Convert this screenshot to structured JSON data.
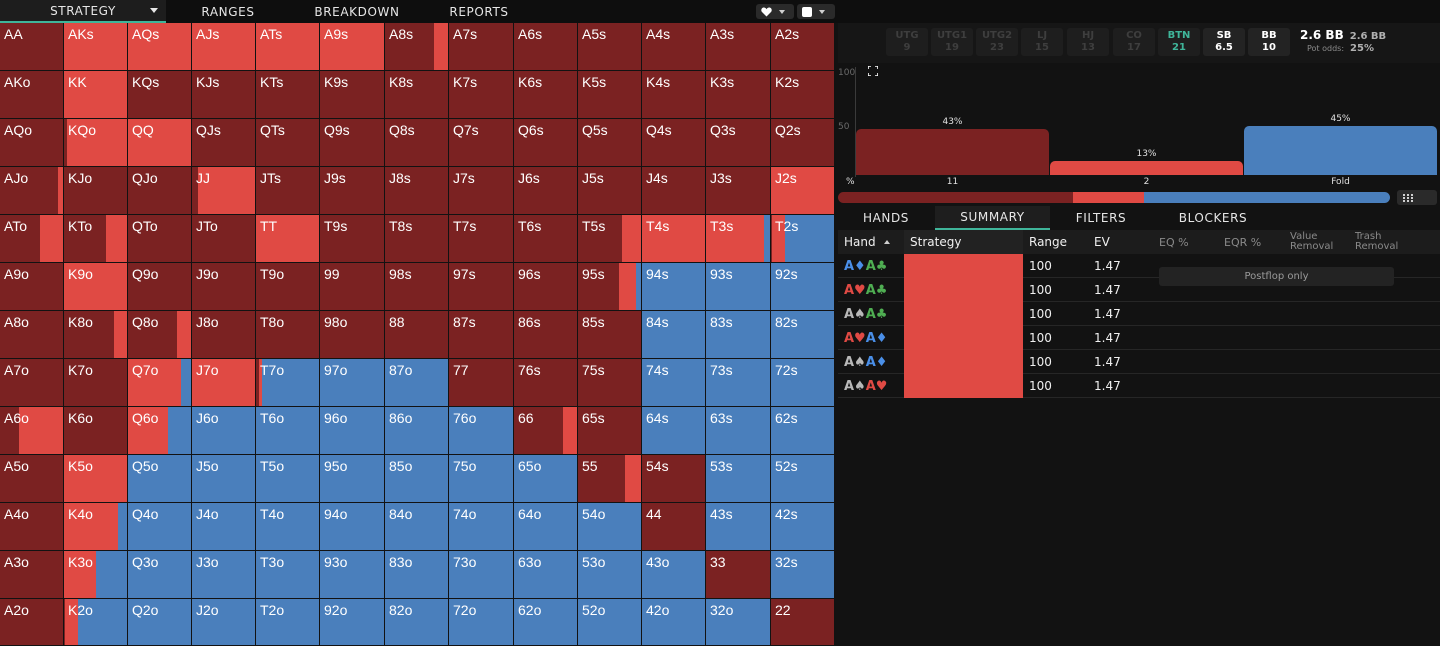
{
  "colors": {
    "raise_big": "#7b2222",
    "raise_small": "#e04a44",
    "fold": "#4a7fbc",
    "accent": "#3fb59a"
  },
  "nav": {
    "tabs": [
      {
        "label": "STRATEGY",
        "active": true
      },
      {
        "label": "RANGES",
        "active": false
      },
      {
        "label": "BREAKDOWN",
        "active": false
      },
      {
        "label": "REPORTS",
        "active": false
      }
    ],
    "selectors": [
      {
        "icon": "heart-icon"
      },
      {
        "icon": "square-icon"
      }
    ]
  },
  "grid": {
    "hands": [
      [
        "AA",
        "AKs",
        "AQs",
        "AJs",
        "ATs",
        "A9s",
        "A8s",
        "A7s",
        "A6s",
        "A5s",
        "A4s",
        "A3s",
        "A2s"
      ],
      [
        "AKo",
        "KK",
        "KQs",
        "KJs",
        "KTs",
        "K9s",
        "K8s",
        "K7s",
        "K6s",
        "K5s",
        "K4s",
        "K3s",
        "K2s"
      ],
      [
        "AQo",
        "KQo",
        "QQ",
        "QJs",
        "QTs",
        "Q9s",
        "Q8s",
        "Q7s",
        "Q6s",
        "Q5s",
        "Q4s",
        "Q3s",
        "Q2s"
      ],
      [
        "AJo",
        "KJo",
        "QJo",
        "JJ",
        "JTs",
        "J9s",
        "J8s",
        "J7s",
        "J6s",
        "J5s",
        "J4s",
        "J3s",
        "J2s"
      ],
      [
        "ATo",
        "KTo",
        "QTo",
        "JTo",
        "TT",
        "T9s",
        "T8s",
        "T7s",
        "T6s",
        "T5s",
        "T4s",
        "T3s",
        "T2s"
      ],
      [
        "A9o",
        "K9o",
        "Q9o",
        "J9o",
        "T9o",
        "99",
        "98s",
        "97s",
        "96s",
        "95s",
        "94s",
        "93s",
        "92s"
      ],
      [
        "A8o",
        "K8o",
        "Q8o",
        "J8o",
        "T8o",
        "98o",
        "88",
        "87s",
        "86s",
        "85s",
        "84s",
        "83s",
        "82s"
      ],
      [
        "A7o",
        "K7o",
        "Q7o",
        "J7o",
        "T7o",
        "97o",
        "87o",
        "77",
        "76s",
        "75s",
        "74s",
        "73s",
        "72s"
      ],
      [
        "A6o",
        "K6o",
        "Q6o",
        "J6o",
        "T6o",
        "96o",
        "86o",
        "76o",
        "66",
        "65s",
        "64s",
        "63s",
        "62s"
      ],
      [
        "A5o",
        "K5o",
        "Q5o",
        "J5o",
        "T5o",
        "95o",
        "85o",
        "75o",
        "65o",
        "55",
        "54s",
        "53s",
        "52s"
      ],
      [
        "A4o",
        "K4o",
        "Q4o",
        "J4o",
        "T4o",
        "94o",
        "84o",
        "74o",
        "64o",
        "54o",
        "44",
        "43s",
        "42s"
      ],
      [
        "A3o",
        "K3o",
        "Q3o",
        "J3o",
        "T3o",
        "93o",
        "83o",
        "73o",
        "63o",
        "53o",
        "43o",
        "33",
        "32s"
      ],
      [
        "A2o",
        "K2o",
        "Q2o",
        "J2o",
        "T2o",
        "92o",
        "82o",
        "72o",
        "62o",
        "52o",
        "42o",
        "32o",
        "22"
      ]
    ],
    "freqs": [
      [
        [
          1,
          0,
          0
        ],
        [
          0,
          1,
          0
        ],
        [
          0,
          1,
          0
        ],
        [
          0,
          1,
          0
        ],
        [
          0,
          1,
          0
        ],
        [
          0,
          1,
          0
        ],
        [
          0.78,
          0.22,
          0
        ],
        [
          1,
          0,
          0
        ],
        [
          1,
          0,
          0
        ],
        [
          1,
          0,
          0
        ],
        [
          1,
          0,
          0
        ],
        [
          1,
          0,
          0
        ],
        [
          1,
          0,
          0
        ]
      ],
      [
        [
          1,
          0,
          0
        ],
        [
          0,
          1,
          0
        ],
        [
          1,
          0,
          0
        ],
        [
          1,
          0,
          0
        ],
        [
          1,
          0,
          0
        ],
        [
          1,
          0,
          0
        ],
        [
          1,
          0,
          0
        ],
        [
          1,
          0,
          0
        ],
        [
          1,
          0,
          0
        ],
        [
          1,
          0,
          0
        ],
        [
          1,
          0,
          0
        ],
        [
          1,
          0,
          0
        ],
        [
          1,
          0,
          0
        ]
      ],
      [
        [
          1,
          0,
          0
        ],
        [
          0.04,
          0.96,
          0
        ],
        [
          0,
          1,
          0
        ],
        [
          1,
          0,
          0
        ],
        [
          1,
          0,
          0
        ],
        [
          1,
          0,
          0
        ],
        [
          1,
          0,
          0
        ],
        [
          1,
          0,
          0
        ],
        [
          1,
          0,
          0
        ],
        [
          1,
          0,
          0
        ],
        [
          1,
          0,
          0
        ],
        [
          1,
          0,
          0
        ],
        [
          1,
          0,
          0
        ]
      ],
      [
        [
          0.92,
          0.08,
          0
        ],
        [
          1,
          0,
          0
        ],
        [
          1,
          0,
          0
        ],
        [
          0.1,
          0.9,
          0
        ],
        [
          1,
          0,
          0
        ],
        [
          1,
          0,
          0
        ],
        [
          1,
          0,
          0
        ],
        [
          1,
          0,
          0
        ],
        [
          1,
          0,
          0
        ],
        [
          1,
          0,
          0
        ],
        [
          1,
          0,
          0
        ],
        [
          1,
          0,
          0
        ],
        [
          0,
          1,
          0
        ]
      ],
      [
        [
          0.64,
          0.36,
          0
        ],
        [
          0.66,
          0.34,
          0
        ],
        [
          1,
          0,
          0
        ],
        [
          1,
          0,
          0
        ],
        [
          0,
          1,
          0
        ],
        [
          1,
          0,
          0
        ],
        [
          1,
          0,
          0
        ],
        [
          1,
          0,
          0
        ],
        [
          1,
          0,
          0
        ],
        [
          0.7,
          0.3,
          0
        ],
        [
          0,
          1,
          0
        ],
        [
          0,
          0.9,
          0.1
        ],
        [
          0.02,
          0.2,
          0.78
        ]
      ],
      [
        [
          1,
          0,
          0
        ],
        [
          0,
          1,
          0
        ],
        [
          1,
          0,
          0
        ],
        [
          1,
          0,
          0
        ],
        [
          1,
          0,
          0
        ],
        [
          1,
          0,
          0
        ],
        [
          1,
          0,
          0
        ],
        [
          1,
          0,
          0
        ],
        [
          1,
          0,
          0
        ],
        [
          0.65,
          0.27,
          0.08
        ],
        [
          0,
          0,
          1
        ],
        [
          0,
          0,
          1
        ],
        [
          0,
          0,
          1
        ]
      ],
      [
        [
          1,
          0,
          0
        ],
        [
          0.8,
          0.2,
          0
        ],
        [
          0.78,
          0.22,
          0
        ],
        [
          1,
          0,
          0
        ],
        [
          1,
          0,
          0
        ],
        [
          1,
          0,
          0
        ],
        [
          1,
          0,
          0
        ],
        [
          1,
          0,
          0
        ],
        [
          1,
          0,
          0
        ],
        [
          1,
          0,
          0
        ],
        [
          0,
          0,
          1
        ],
        [
          0,
          0,
          1
        ],
        [
          0,
          0,
          1
        ]
      ],
      [
        [
          1,
          0,
          0
        ],
        [
          1,
          0,
          0
        ],
        [
          0,
          0.84,
          0.16
        ],
        [
          0,
          1,
          0
        ],
        [
          0.04,
          0.06,
          0.9
        ],
        [
          0,
          0,
          1
        ],
        [
          0,
          0,
          1
        ],
        [
          1,
          0,
          0
        ],
        [
          1,
          0,
          0
        ],
        [
          1,
          0,
          0
        ],
        [
          0,
          0,
          1
        ],
        [
          0,
          0,
          1
        ],
        [
          0,
          0,
          1
        ]
      ],
      [
        [
          0.3,
          0.7,
          0
        ],
        [
          1,
          0,
          0
        ],
        [
          0,
          0.64,
          0.36
        ],
        [
          0,
          0,
          1
        ],
        [
          0,
          0,
          1
        ],
        [
          0,
          0,
          1
        ],
        [
          0,
          0,
          1
        ],
        [
          0,
          0,
          1
        ],
        [
          0.78,
          0.22,
          0
        ],
        [
          1,
          0,
          0
        ],
        [
          0,
          0,
          1
        ],
        [
          0,
          0,
          1
        ],
        [
          0,
          0,
          1
        ]
      ],
      [
        [
          1,
          0,
          0
        ],
        [
          0,
          1,
          0
        ],
        [
          0,
          0,
          1
        ],
        [
          0,
          0,
          1
        ],
        [
          0,
          0,
          1
        ],
        [
          0,
          0,
          1
        ],
        [
          0,
          0,
          1
        ],
        [
          0,
          0,
          1
        ],
        [
          0,
          0,
          1
        ],
        [
          0.75,
          0.25,
          0
        ],
        [
          1,
          0,
          0
        ],
        [
          0,
          0,
          1
        ],
        [
          0,
          0,
          1
        ]
      ],
      [
        [
          1,
          0,
          0
        ],
        [
          0,
          0.86,
          0.14
        ],
        [
          0,
          0,
          1
        ],
        [
          0,
          0,
          1
        ],
        [
          0,
          0,
          1
        ],
        [
          0,
          0,
          1
        ],
        [
          0,
          0,
          1
        ],
        [
          0,
          0,
          1
        ],
        [
          0,
          0,
          1
        ],
        [
          0,
          0,
          1
        ],
        [
          1,
          0,
          0
        ],
        [
          0,
          0,
          1
        ],
        [
          0,
          0,
          1
        ]
      ],
      [
        [
          1,
          0,
          0
        ],
        [
          0,
          0.5,
          0.5
        ],
        [
          0,
          0,
          1
        ],
        [
          0,
          0,
          1
        ],
        [
          0,
          0,
          1
        ],
        [
          0,
          0,
          1
        ],
        [
          0,
          0,
          1
        ],
        [
          0,
          0,
          1
        ],
        [
          0,
          0,
          1
        ],
        [
          0,
          0,
          1
        ],
        [
          0,
          0,
          1
        ],
        [
          1,
          0,
          0
        ],
        [
          0,
          0,
          1
        ]
      ],
      [
        [
          1,
          0,
          0
        ],
        [
          0.02,
          0.2,
          0.78
        ],
        [
          0,
          0,
          1
        ],
        [
          0,
          0,
          1
        ],
        [
          0,
          0,
          1
        ],
        [
          0,
          0,
          1
        ],
        [
          0,
          0,
          1
        ],
        [
          0,
          0,
          1
        ],
        [
          0,
          0,
          1
        ],
        [
          0,
          0,
          1
        ],
        [
          0,
          0,
          1
        ],
        [
          0,
          0,
          1
        ],
        [
          1,
          0,
          0
        ]
      ]
    ]
  },
  "positions": [
    {
      "name": "UTG",
      "stack": "9",
      "state": "dim"
    },
    {
      "name": "UTG1",
      "stack": "19",
      "state": "dim"
    },
    {
      "name": "UTG2",
      "stack": "23",
      "state": "dim"
    },
    {
      "name": "LJ",
      "stack": "15",
      "state": "dim"
    },
    {
      "name": "HJ",
      "stack": "13",
      "state": "dim"
    },
    {
      "name": "CO",
      "stack": "17",
      "state": "dim"
    },
    {
      "name": "BTN",
      "stack": "21",
      "state": "btn"
    },
    {
      "name": "SB",
      "stack": "6.5",
      "state": "live"
    },
    {
      "name": "BB",
      "stack": "10",
      "state": "live"
    }
  ],
  "pot": {
    "main": "2.6 BB",
    "secondary": "2.6 BB",
    "odds_label": "Pot odds:",
    "odds_value": "25%"
  },
  "chart_data": {
    "type": "bar",
    "categories": [
      "11",
      "2",
      "Fold"
    ],
    "values": [
      43,
      13,
      45
    ],
    "value_labels": [
      "43%",
      "13%",
      "45%"
    ],
    "ylim": [
      0,
      100
    ],
    "yticks": [
      "100",
      "50"
    ],
    "x_axis_unit": "%",
    "colors": [
      "#7b2222",
      "#e04a44",
      "#4a7fbc"
    ]
  },
  "subtabs": [
    {
      "label": "HANDS",
      "active": false
    },
    {
      "label": "SUMMARY",
      "active": true
    },
    {
      "label": "FILTERS",
      "active": false
    },
    {
      "label": "BLOCKERS",
      "active": false
    }
  ],
  "table": {
    "headers": {
      "hand": "Hand",
      "strategy": "Strategy",
      "range": "Range",
      "ev": "EV",
      "eq": "EQ %",
      "eqr": "EQR %",
      "value_removal_1": "Value",
      "value_removal_2": "Removal",
      "trash_removal_1": "Trash",
      "trash_removal_2": "Removal"
    },
    "rows": [
      {
        "c1": "A♦",
        "c1color": "#4a8fe8",
        "c2": "A♣",
        "c2color": "#4fae52",
        "range": "100",
        "ev": "1.47"
      },
      {
        "c1": "A♥",
        "c1color": "#e04a44",
        "c2": "A♣",
        "c2color": "#4fae52",
        "range": "100",
        "ev": "1.47"
      },
      {
        "c1": "A♠",
        "c1color": "#b8b8b8",
        "c2": "A♣",
        "c2color": "#4fae52",
        "range": "100",
        "ev": "1.47"
      },
      {
        "c1": "A♥",
        "c1color": "#e04a44",
        "c2": "A♦",
        "c2color": "#4a8fe8",
        "range": "100",
        "ev": "1.47"
      },
      {
        "c1": "A♠",
        "c1color": "#b8b8b8",
        "c2": "A♦",
        "c2color": "#4a8fe8",
        "range": "100",
        "ev": "1.47"
      },
      {
        "c1": "A♠",
        "c1color": "#b8b8b8",
        "c2": "A♥",
        "c2color": "#e04a44",
        "range": "100",
        "ev": "1.47"
      }
    ],
    "postflop_note": "Postflop only"
  }
}
